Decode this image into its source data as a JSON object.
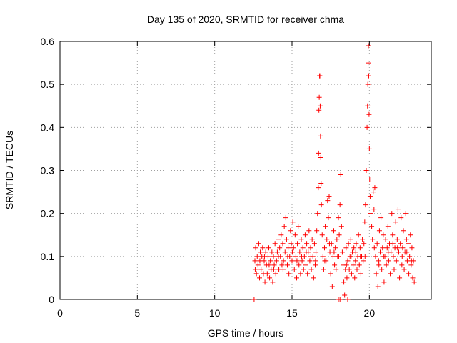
{
  "chart_data": {
    "type": "scatter",
    "title": "Day 135 of 2020, SRMTID for receiver chma",
    "xlabel": "GPS time / hours",
    "ylabel": "SRMTID / TECUs",
    "xlim": [
      0,
      24
    ],
    "ylim": [
      0,
      0.6
    ],
    "xticks": [
      0,
      5,
      10,
      15,
      20
    ],
    "xtick_labels": [
      "0",
      "5",
      "10",
      "15",
      "20"
    ],
    "yticks": [
      0,
      0.1,
      0.2,
      0.3,
      0.4,
      0.5,
      0.6
    ],
    "ytick_labels": [
      "0",
      "0.1",
      "0.2",
      "0.3",
      "0.4",
      "0.5",
      "0.6"
    ],
    "grid": true,
    "marker": "plus",
    "color": "#ff0000",
    "series": [
      {
        "name": "SRMTID",
        "points": [
          [
            12.55,
            0.0
          ],
          [
            18.0,
            0.0
          ],
          [
            18.1,
            0.0
          ],
          [
            18.6,
            0.0
          ],
          [
            12.6,
            0.09
          ],
          [
            12.65,
            0.12
          ],
          [
            12.7,
            0.06
          ],
          [
            12.75,
            0.1
          ],
          [
            12.8,
            0.08
          ],
          [
            12.85,
            0.13
          ],
          [
            12.9,
            0.05
          ],
          [
            12.95,
            0.11
          ],
          [
            13.0,
            0.07
          ],
          [
            13.05,
            0.1
          ],
          [
            13.1,
            0.12
          ],
          [
            13.15,
            0.06
          ],
          [
            13.2,
            0.09
          ],
          [
            13.25,
            0.04
          ],
          [
            13.3,
            0.11
          ],
          [
            13.35,
            0.08
          ],
          [
            13.4,
            0.06
          ],
          [
            13.45,
            0.1
          ],
          [
            13.5,
            0.12
          ],
          [
            13.55,
            0.05
          ],
          [
            13.6,
            0.09
          ],
          [
            13.65,
            0.07
          ],
          [
            13.7,
            0.11
          ],
          [
            13.75,
            0.04
          ],
          [
            13.8,
            0.1
          ],
          [
            13.85,
            0.08
          ],
          [
            13.9,
            0.13
          ],
          [
            13.95,
            0.06
          ],
          [
            14.0,
            0.09
          ],
          [
            14.05,
            0.11
          ],
          [
            14.1,
            0.14
          ],
          [
            14.15,
            0.07
          ],
          [
            14.2,
            0.12
          ],
          [
            14.25,
            0.1
          ],
          [
            14.3,
            0.15
          ],
          [
            14.35,
            0.08
          ],
          [
            14.4,
            0.13
          ],
          [
            14.45,
            0.09
          ],
          [
            14.5,
            0.17
          ],
          [
            14.55,
            0.11
          ],
          [
            14.6,
            0.19
          ],
          [
            14.65,
            0.14
          ],
          [
            14.7,
            0.08
          ],
          [
            14.75,
            0.12
          ],
          [
            14.8,
            0.06
          ],
          [
            14.85,
            0.1
          ],
          [
            14.9,
            0.16
          ],
          [
            14.95,
            0.13
          ],
          [
            15.0,
            0.09
          ],
          [
            15.05,
            0.18
          ],
          [
            15.1,
            0.12
          ],
          [
            15.15,
            0.07
          ],
          [
            15.2,
            0.15
          ],
          [
            15.25,
            0.1
          ],
          [
            15.3,
            0.05
          ],
          [
            15.35,
            0.13
          ],
          [
            15.4,
            0.17
          ],
          [
            15.45,
            0.08
          ],
          [
            15.5,
            0.11
          ],
          [
            15.55,
            0.06
          ],
          [
            15.6,
            0.14
          ],
          [
            15.65,
            0.09
          ],
          [
            15.7,
            0.12
          ],
          [
            15.75,
            0.07
          ],
          [
            15.8,
            0.1
          ],
          [
            15.85,
            0.15
          ],
          [
            15.9,
            0.08
          ],
          [
            15.95,
            0.13
          ],
          [
            16.0,
            0.06
          ],
          [
            16.05,
            0.11
          ],
          [
            16.1,
            0.16
          ],
          [
            16.15,
            0.09
          ],
          [
            16.2,
            0.12
          ],
          [
            16.25,
            0.07
          ],
          [
            16.3,
            0.14
          ],
          [
            16.35,
            0.1
          ],
          [
            16.4,
            0.05
          ],
          [
            16.45,
            0.13
          ],
          [
            16.5,
            0.08
          ],
          [
            16.55,
            0.11
          ],
          [
            16.6,
            0.16
          ],
          [
            16.65,
            0.2
          ],
          [
            16.7,
            0.26
          ],
          [
            16.72,
            0.34
          ],
          [
            16.74,
            0.44
          ],
          [
            16.76,
            0.47
          ],
          [
            16.78,
            0.52
          ],
          [
            16.8,
            0.52
          ],
          [
            16.82,
            0.45
          ],
          [
            16.84,
            0.38
          ],
          [
            16.86,
            0.33
          ],
          [
            16.88,
            0.27
          ],
          [
            16.9,
            0.22
          ],
          [
            16.95,
            0.15
          ],
          [
            17.0,
            0.1
          ],
          [
            17.05,
            0.07
          ],
          [
            17.1,
            0.12
          ],
          [
            17.15,
            0.17
          ],
          [
            17.2,
            0.09
          ],
          [
            17.25,
            0.14
          ],
          [
            17.3,
            0.23
          ],
          [
            17.35,
            0.19
          ],
          [
            17.4,
            0.24
          ],
          [
            17.45,
            0.11
          ],
          [
            17.5,
            0.06
          ],
          [
            17.55,
            0.13
          ],
          [
            17.6,
            0.03
          ],
          [
            17.65,
            0.1
          ],
          [
            17.7,
            0.16
          ],
          [
            17.75,
            0.08
          ],
          [
            17.8,
            0.12
          ],
          [
            17.85,
            0.07
          ],
          [
            17.9,
            0.14
          ],
          [
            17.95,
            0.1
          ],
          [
            18.0,
            0.19
          ],
          [
            18.05,
            0.15
          ],
          [
            18.1,
            0.22
          ],
          [
            18.15,
            0.29
          ],
          [
            18.2,
            0.17
          ],
          [
            18.25,
            0.11
          ],
          [
            18.3,
            0.08
          ],
          [
            18.35,
            0.04
          ],
          [
            18.4,
            0.01
          ],
          [
            18.45,
            0.07
          ],
          [
            18.5,
            0.12
          ],
          [
            18.55,
            0.05
          ],
          [
            18.6,
            0.09
          ],
          [
            18.65,
            0.13
          ],
          [
            18.7,
            0.07
          ],
          [
            18.75,
            0.1
          ],
          [
            18.8,
            0.14
          ],
          [
            18.85,
            0.06
          ],
          [
            18.9,
            0.11
          ],
          [
            18.95,
            0.08
          ],
          [
            19.0,
            0.12
          ],
          [
            19.05,
            0.05
          ],
          [
            19.1,
            0.09
          ],
          [
            19.15,
            0.13
          ],
          [
            19.2,
            0.07
          ],
          [
            19.25,
            0.1
          ],
          [
            19.3,
            0.15
          ],
          [
            19.35,
            0.08
          ],
          [
            19.4,
            0.12
          ],
          [
            19.45,
            0.06
          ],
          [
            19.5,
            0.1
          ],
          [
            19.55,
            0.14
          ],
          [
            19.6,
            0.09
          ],
          [
            19.65,
            0.13
          ],
          [
            19.7,
            0.18
          ],
          [
            19.75,
            0.22
          ],
          [
            19.8,
            0.3
          ],
          [
            19.85,
            0.4
          ],
          [
            19.88,
            0.45
          ],
          [
            19.9,
            0.5
          ],
          [
            19.92,
            0.55
          ],
          [
            19.94,
            0.59
          ],
          [
            19.96,
            0.52
          ],
          [
            19.98,
            0.43
          ],
          [
            20.0,
            0.35
          ],
          [
            20.02,
            0.28
          ],
          [
            20.05,
            0.24
          ],
          [
            20.1,
            0.2
          ],
          [
            20.15,
            0.17
          ],
          [
            20.2,
            0.14
          ],
          [
            20.25,
            0.25
          ],
          [
            20.3,
            0.21
          ],
          [
            20.35,
            0.26
          ],
          [
            20.4,
            0.1
          ],
          [
            20.45,
            0.06
          ],
          [
            20.5,
            0.13
          ],
          [
            20.55,
            0.03
          ],
          [
            20.6,
            0.09
          ],
          [
            20.65,
            0.16
          ],
          [
            20.7,
            0.11
          ],
          [
            20.75,
            0.19
          ],
          [
            20.8,
            0.07
          ],
          [
            20.85,
            0.12
          ],
          [
            20.9,
            0.15
          ],
          [
            20.95,
            0.04
          ],
          [
            21.0,
            0.1
          ],
          [
            21.05,
            0.14
          ],
          [
            21.1,
            0.08
          ],
          [
            21.15,
            0.12
          ],
          [
            21.2,
            0.17
          ],
          [
            21.25,
            0.09
          ],
          [
            21.3,
            0.13
          ],
          [
            21.35,
            0.06
          ],
          [
            21.4,
            0.11
          ],
          [
            21.45,
            0.2
          ],
          [
            21.5,
            0.15
          ],
          [
            21.55,
            0.1
          ],
          [
            21.6,
            0.07
          ],
          [
            21.65,
            0.12
          ],
          [
            21.7,
            0.18
          ],
          [
            21.75,
            0.09
          ],
          [
            21.8,
            0.14
          ],
          [
            21.85,
            0.21
          ],
          [
            21.9,
            0.11
          ],
          [
            21.95,
            0.05
          ],
          [
            22.0,
            0.13
          ],
          [
            22.05,
            0.19
          ],
          [
            22.1,
            0.08
          ],
          [
            22.15,
            0.12
          ],
          [
            22.2,
            0.16
          ],
          [
            22.25,
            0.07
          ],
          [
            22.3,
            0.11
          ],
          [
            22.35,
            0.2
          ],
          [
            22.4,
            0.14
          ],
          [
            22.45,
            0.09
          ],
          [
            22.5,
            0.13
          ],
          [
            22.55,
            0.06
          ],
          [
            22.6,
            0.1
          ],
          [
            22.65,
            0.15
          ],
          [
            22.7,
            0.08
          ],
          [
            22.75,
            0.12
          ],
          [
            22.8,
            0.05
          ],
          [
            22.85,
            0.09
          ],
          [
            22.9,
            0.04
          ],
          [
            12.62,
            0.07
          ],
          [
            12.92,
            0.09
          ],
          [
            13.22,
            0.1
          ],
          [
            13.52,
            0.08
          ],
          [
            13.82,
            0.07
          ],
          [
            14.12,
            0.1
          ],
          [
            14.42,
            0.07
          ],
          [
            14.72,
            0.1
          ],
          [
            15.02,
            0.11
          ],
          [
            15.32,
            0.09
          ],
          [
            15.62,
            0.1
          ],
          [
            15.92,
            0.11
          ],
          [
            16.22,
            0.1
          ],
          [
            16.52,
            0.09
          ],
          [
            17.12,
            0.09
          ],
          [
            17.42,
            0.13
          ],
          [
            17.72,
            0.11
          ],
          [
            18.02,
            0.1
          ],
          [
            18.52,
            0.08
          ],
          [
            18.82,
            0.1
          ],
          [
            19.12,
            0.11
          ],
          [
            19.42,
            0.1
          ],
          [
            19.72,
            0.1
          ],
          [
            20.32,
            0.12
          ],
          [
            20.62,
            0.08
          ],
          [
            20.92,
            0.1
          ],
          [
            21.22,
            0.11
          ],
          [
            21.52,
            0.13
          ],
          [
            21.82,
            0.12
          ],
          [
            22.12,
            0.1
          ],
          [
            22.42,
            0.11
          ],
          [
            22.72,
            0.09
          ]
        ]
      }
    ]
  }
}
